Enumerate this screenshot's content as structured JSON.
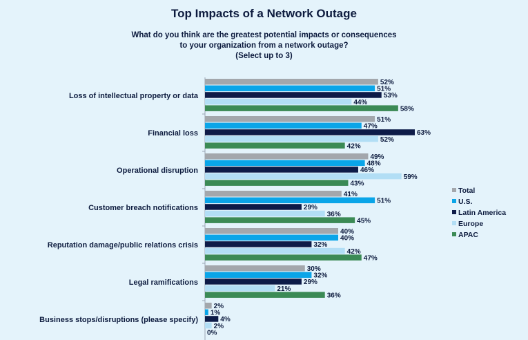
{
  "title": "Top Impacts of a Network Outage",
  "subtitle_lines": [
    "What do you think are the greatest potential impacts or consequences",
    "to your organization from a network outage?",
    "(Select up to 3)"
  ],
  "colors": {
    "Total": "#a3a7ac",
    "U.S.": "#0aa5e8",
    "Latin America": "#0d1b48",
    "Europe": "#b2def5",
    "APAC": "#3b8a55"
  },
  "chart_data": {
    "type": "bar",
    "orientation": "horizontal",
    "categories": [
      "Loss of intellectual property or data",
      "Financial loss",
      "Operational disruption",
      "Customer breach notifications",
      "Reputation damage/public relations crisis",
      "Legal ramifications",
      "Business stops/disruptions (please specify)"
    ],
    "series": [
      {
        "name": "Total",
        "values": [
          52,
          51,
          49,
          41,
          40,
          30,
          2
        ]
      },
      {
        "name": "U.S.",
        "values": [
          51,
          47,
          48,
          51,
          40,
          32,
          1
        ]
      },
      {
        "name": "Latin America",
        "values": [
          53,
          63,
          46,
          29,
          32,
          29,
          4
        ]
      },
      {
        "name": "Europe",
        "values": [
          44,
          52,
          59,
          36,
          42,
          21,
          2
        ]
      },
      {
        "name": "APAC",
        "values": [
          58,
          42,
          43,
          45,
          47,
          36,
          0
        ]
      }
    ],
    "value_suffix": "%",
    "xlim": [
      0,
      70
    ],
    "grid": false,
    "legend_position": "right"
  }
}
